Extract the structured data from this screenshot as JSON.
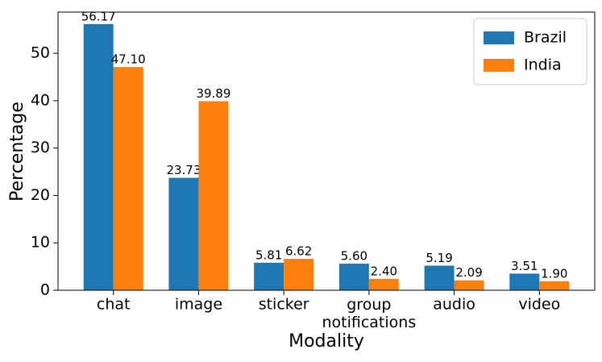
{
  "chart_data": {
    "type": "bar",
    "x_label": "Modality",
    "y_label": "Percentage",
    "categories": [
      "chat",
      "image",
      "sticker",
      "group\nnotifications",
      "audio",
      "video"
    ],
    "series": [
      {
        "name": "Brazil",
        "color": "#1f77b4",
        "values": [
          56.17,
          23.73,
          5.81,
          5.6,
          5.19,
          3.51
        ],
        "value_labels": [
          "56.17",
          "23.73",
          "5.81",
          "5.60",
          "5.19",
          "3.51"
        ]
      },
      {
        "name": "India",
        "color": "#ff7f0e",
        "values": [
          47.1,
          39.89,
          6.62,
          2.4,
          2.09,
          1.9
        ],
        "value_labels": [
          "47.10",
          "39.89",
          "6.62",
          "2.40",
          "2.09",
          "1.90"
        ]
      }
    ],
    "ylim": [
      0,
      58.7
    ],
    "yticks": [
      0,
      10,
      20,
      30,
      40,
      50
    ],
    "legend": "upper right",
    "grid": false
  }
}
